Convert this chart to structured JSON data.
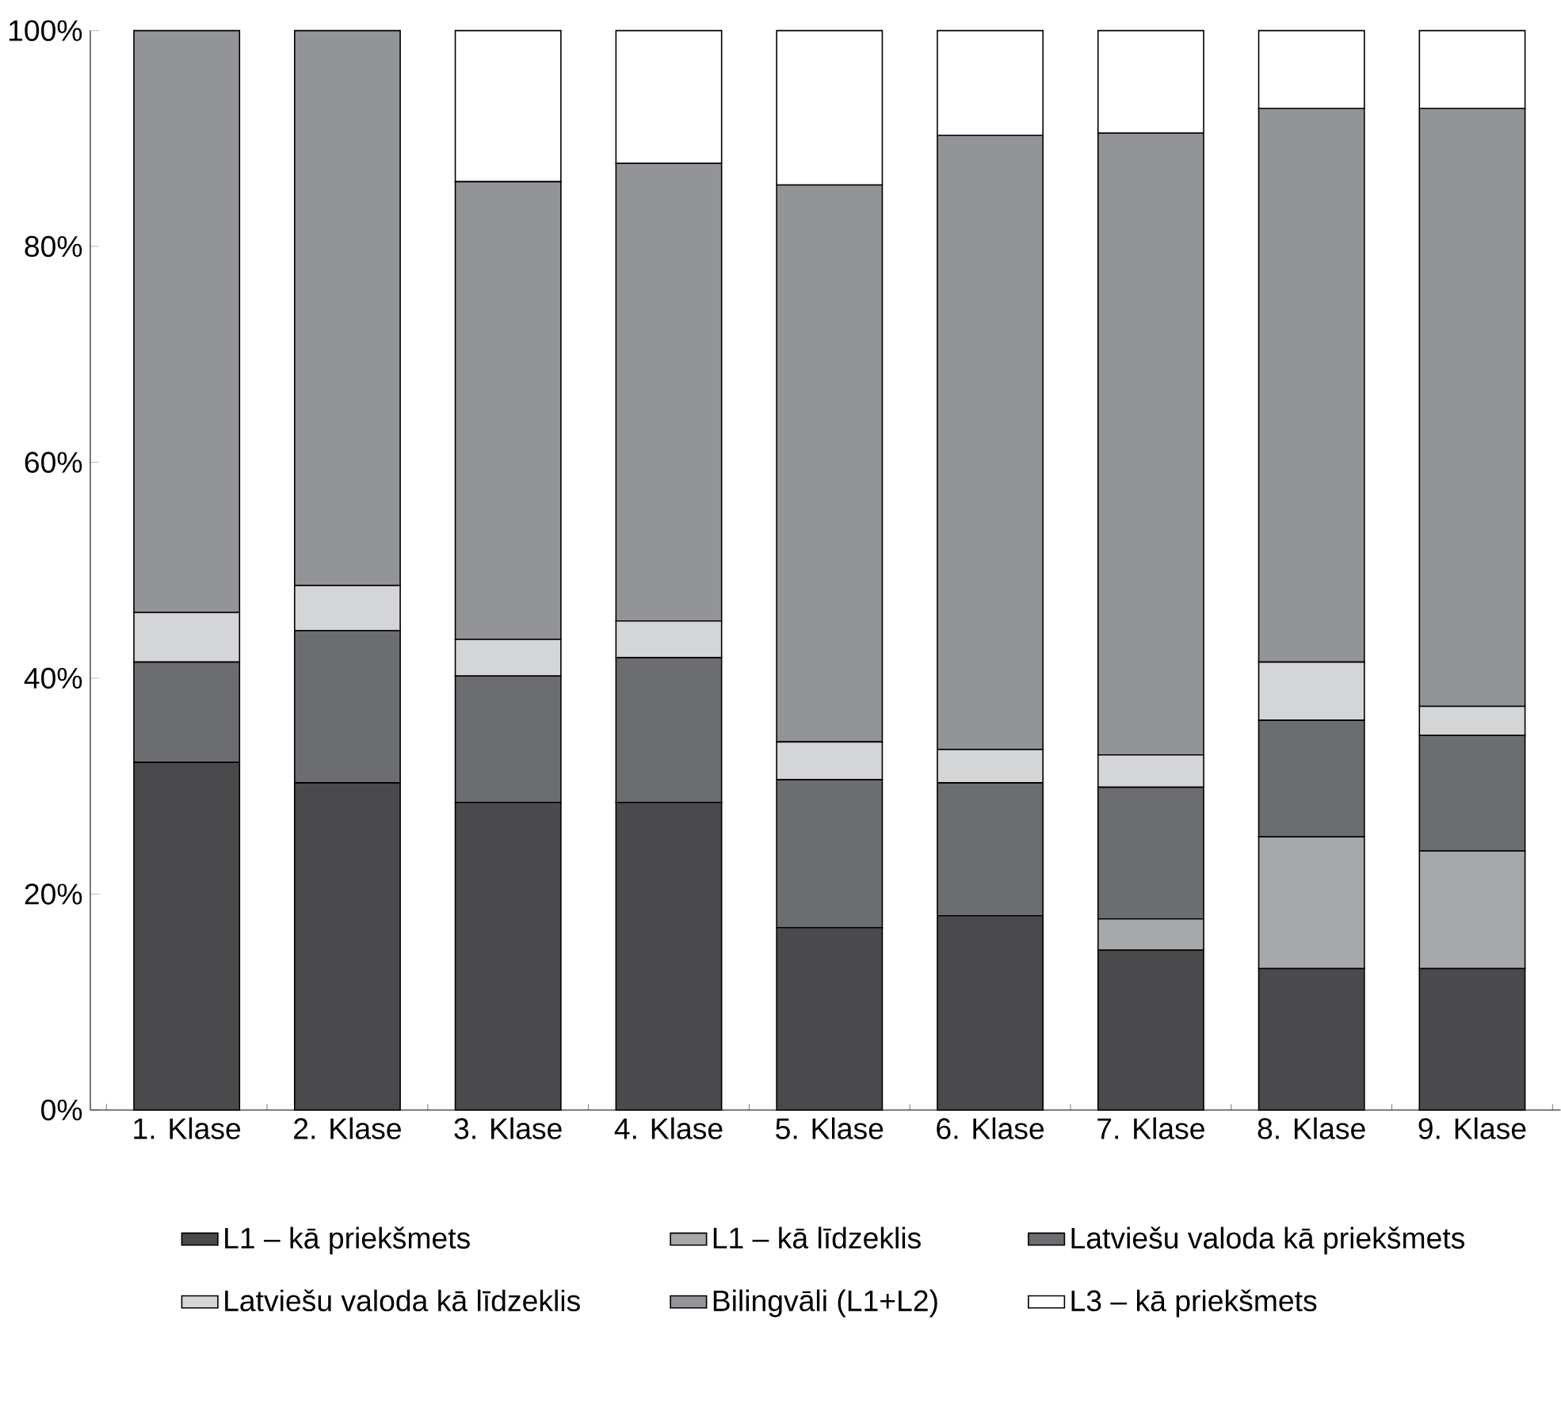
{
  "chart_data": {
    "type": "bar",
    "stacked": true,
    "categories": [
      "1. Klase",
      "2. Klase",
      "3. Klase",
      "4. Klase",
      "5. Klase",
      "6. Klase",
      "7. Klase",
      "8. Klase",
      "9. Klase"
    ],
    "ylim": [
      0,
      100
    ],
    "yticks": [
      {
        "value": 0,
        "label": "0%"
      },
      {
        "value": 20,
        "label": "20%"
      },
      {
        "value": 40,
        "label": "40%"
      },
      {
        "value": 60,
        "label": "60%"
      },
      {
        "value": 80,
        "label": "80%"
      },
      {
        "value": 100,
        "label": "100%"
      }
    ],
    "legend": "bottom",
    "grid": false,
    "series": [
      {
        "name": "L1 – kā priekšmets",
        "color": "#4a4a4c",
        "values": [
          32.2,
          30.3,
          28.5,
          28.5,
          16.9,
          18.0,
          14.8,
          13.1,
          13.1
        ]
      },
      {
        "name": "L1 – kā līdzeklis",
        "color": "#a7a8aa",
        "values": [
          0,
          0,
          0,
          0,
          0,
          0,
          2.9,
          12.2,
          10.9
        ]
      },
      {
        "name": "Latviešu valoda kā priekšmets",
        "color": "#6c6d70",
        "values": [
          9.3,
          14.1,
          11.7,
          13.4,
          13.7,
          12.3,
          12.2,
          10.8,
          10.7
        ]
      },
      {
        "name": "Latviešu valoda kā līdzeklis",
        "color": "#d4d5d7",
        "values": [
          4.6,
          4.2,
          3.4,
          3.4,
          3.5,
          3.1,
          3.0,
          5.4,
          2.7
        ]
      },
      {
        "name": "Bilingvāli (L1+L2)",
        "color": "#939497",
        "values": [
          53.9,
          51.4,
          42.4,
          42.4,
          51.6,
          56.9,
          57.6,
          51.3,
          55.4
        ]
      },
      {
        "name": "L3 – kā priekšmets",
        "color": "#ffffff",
        "values": [
          0,
          0,
          14.0,
          12.3,
          14.3,
          9.7,
          9.5,
          7.2,
          7.2
        ]
      }
    ]
  }
}
